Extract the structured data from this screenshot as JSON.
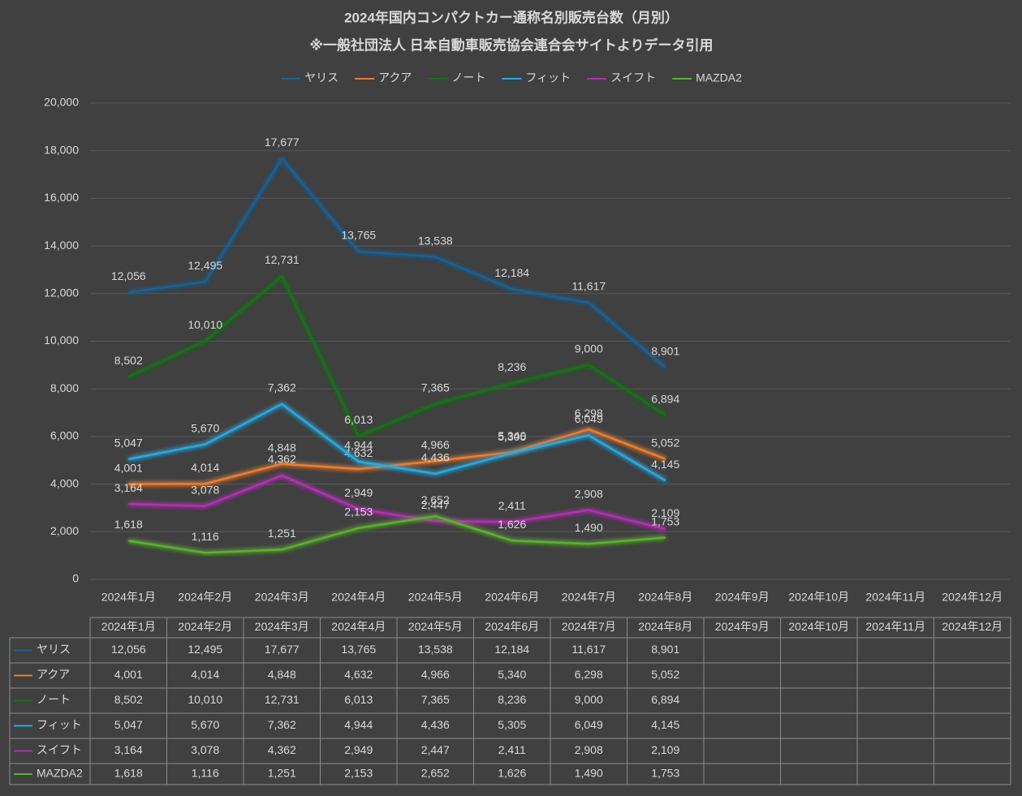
{
  "chart_data": {
    "type": "line",
    "title": "2024年国内コンパクトカー通称名別販売台数（月別）",
    "subtitle": "※一般社団法人 日本自動車販売協会連合会サイトよりデータ引用",
    "categories": [
      "2024年1月",
      "2024年2月",
      "2024年3月",
      "2024年4月",
      "2024年5月",
      "2024年6月",
      "2024年7月",
      "2024年8月",
      "2024年9月",
      "2024年10月",
      "2024年11月",
      "2024年12月"
    ],
    "series": [
      {
        "name": "ヤリス",
        "color": "#1f5f8f",
        "values": [
          12056,
          12495,
          17677,
          13765,
          13538,
          12184,
          11617,
          8901,
          null,
          null,
          null,
          null
        ],
        "value_labels": [
          "12,056",
          "12,495",
          "17,677",
          "13,765",
          "13,538",
          "12,184",
          "11,617",
          "8,901",
          null,
          null,
          null,
          null
        ]
      },
      {
        "name": "アクア",
        "color": "#ed7d31",
        "values": [
          4001,
          4014,
          4848,
          4632,
          4966,
          5340,
          6298,
          5052,
          null,
          null,
          null,
          null
        ],
        "value_labels": [
          "4,001",
          "4,014",
          "4,848",
          "4,632",
          "4,966",
          "5,340",
          "6,298",
          "5,052",
          null,
          null,
          null,
          null
        ]
      },
      {
        "name": "ノート",
        "color": "#1c6e1c",
        "values": [
          8502,
          10010,
          12731,
          6013,
          7365,
          8236,
          9000,
          6894,
          null,
          null,
          null,
          null
        ],
        "value_labels": [
          "8,502",
          "10,010",
          "12,731",
          "6,013",
          "7,365",
          "8,236",
          "9,000",
          "6,894",
          null,
          null,
          null,
          null
        ]
      },
      {
        "name": "フィット",
        "color": "#29a8e0",
        "values": [
          5047,
          5670,
          7362,
          4944,
          4436,
          5305,
          6049,
          4145,
          null,
          null,
          null,
          null
        ],
        "value_labels": [
          "5,047",
          "5,670",
          "7,362",
          "4,944",
          "4,436",
          "5,305",
          "6,049",
          "4,145",
          null,
          null,
          null,
          null
        ]
      },
      {
        "name": "スイフト",
        "color": "#b030b0",
        "values": [
          3164,
          3078,
          4362,
          2949,
          2447,
          2411,
          2908,
          2109,
          null,
          null,
          null,
          null
        ],
        "value_labels": [
          "3,164",
          "3,078",
          "4,362",
          "2,949",
          "2,447",
          "2,411",
          "2,908",
          "2,109",
          null,
          null,
          null,
          null
        ]
      },
      {
        "name": "MAZDA2",
        "color": "#5cb030",
        "values": [
          1618,
          1116,
          1251,
          2153,
          2652,
          1626,
          1490,
          1753,
          null,
          null,
          null,
          null
        ],
        "value_labels": [
          "1,618",
          "1,116",
          "1,251",
          "2,153",
          "2,652",
          "1,626",
          "1,490",
          "1,753",
          null,
          null,
          null,
          null
        ]
      }
    ],
    "ylim": [
      0,
      20000
    ],
    "yticks": [
      0,
      {
        "value": 2000,
        "label": "2,000"
      },
      {
        "value": 4000,
        "label": "4,000"
      },
      {
        "value": 6000,
        "label": "6,000"
      },
      {
        "value": 8000,
        "label": "8,000"
      },
      {
        "value": 10000,
        "label": "10,000"
      },
      {
        "value": 12000,
        "label": "12,000"
      },
      {
        "value": 14000,
        "label": "14,000"
      },
      {
        "value": 16000,
        "label": "16,000"
      },
      {
        "value": 18000,
        "label": "18,000"
      },
      {
        "value": 20000,
        "label": "20,000"
      }
    ],
    "grid": true,
    "legend": "top",
    "data_table": true
  }
}
